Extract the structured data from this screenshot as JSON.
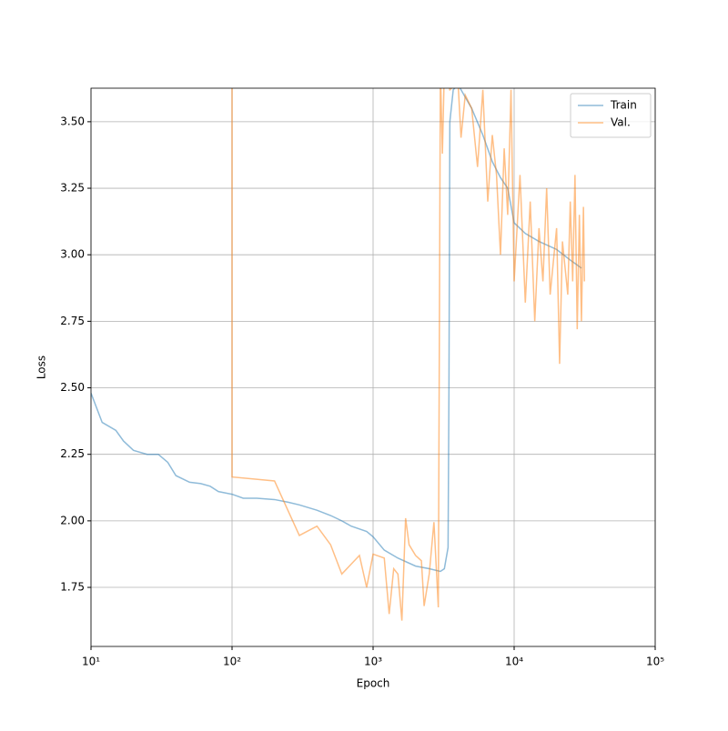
{
  "chart_data": {
    "type": "line",
    "x_label": "Epoch",
    "y_label": "Loss",
    "xscale": "log",
    "grid": true,
    "legend": "upper right",
    "xlim": [
      10,
      100000
    ],
    "xticks": [
      {
        "value": 10,
        "label": "10¹"
      },
      {
        "value": 100,
        "label": "10²"
      },
      {
        "value": 1000,
        "label": "10³"
      },
      {
        "value": 10000,
        "label": "10⁴"
      },
      {
        "value": 100000,
        "label": "10⁵"
      }
    ],
    "ylim": [
      1.528,
      3.626
    ],
    "yticks": [
      1.75,
      {
        "value": 2.0,
        "label": "2.00"
      },
      2.25,
      {
        "value": 2.5,
        "label": "2.50"
      },
      2.75,
      {
        "value": 3.0,
        "label": "3.00"
      },
      3.25,
      {
        "value": 3.5,
        "label": "3.50"
      }
    ],
    "series": [
      {
        "name": "Train",
        "color": "#1f77b4",
        "x": [
          10,
          12,
          15,
          17,
          20,
          25,
          30,
          35,
          40,
          50,
          60,
          70,
          80,
          100,
          120,
          150,
          200,
          250,
          300,
          400,
          500,
          600,
          700,
          900,
          1000,
          1200,
          1500,
          2000,
          2500,
          3000,
          3200,
          3400,
          3450,
          3500,
          3700,
          4000,
          5000,
          6000,
          7000,
          8000,
          9000,
          10000,
          12000,
          15000,
          20000,
          25000,
          30000
        ],
        "values": [
          2.48,
          2.37,
          2.34,
          2.3,
          2.265,
          2.25,
          2.25,
          2.22,
          2.17,
          2.145,
          2.14,
          2.13,
          2.11,
          2.1,
          2.085,
          2.085,
          2.08,
          2.07,
          2.06,
          2.04,
          2.02,
          2.0,
          1.98,
          1.96,
          1.94,
          1.89,
          1.86,
          1.83,
          1.82,
          1.81,
          1.82,
          1.9,
          2.5,
          3.5,
          3.62,
          3.64,
          3.55,
          3.45,
          3.35,
          3.29,
          3.25,
          3.12,
          3.08,
          3.05,
          3.02,
          2.98,
          2.95
        ]
      },
      {
        "name": "Val.",
        "color": "#ff7f0e",
        "x": [
          100,
          100,
          200,
          300,
          400,
          500,
          600,
          800,
          900,
          1000,
          1200,
          1300,
          1400,
          1500,
          1600,
          1700,
          1800,
          2000,
          2200,
          2300,
          2500,
          2700,
          2900,
          3000,
          3100,
          3200,
          3500,
          4000,
          4200,
          4500,
          5000,
          5500,
          6000,
          6500,
          7000,
          7500,
          8000,
          8500,
          9000,
          9500,
          10000,
          11000,
          12000,
          13000,
          14000,
          15000,
          16000,
          17000,
          18000,
          20000,
          21000,
          22000,
          24000,
          25000,
          26000,
          27000,
          28000,
          29000,
          30000,
          31000,
          31500
        ],
        "values": [
          3.7,
          2.165,
          2.15,
          1.945,
          1.98,
          1.91,
          1.8,
          1.87,
          1.75,
          1.875,
          1.86,
          1.65,
          1.82,
          1.8,
          1.625,
          2.01,
          1.91,
          1.87,
          1.85,
          1.68,
          1.8,
          1.995,
          1.675,
          3.7,
          3.38,
          3.7,
          3.62,
          3.65,
          3.44,
          3.6,
          3.55,
          3.33,
          3.62,
          3.2,
          3.45,
          3.3,
          3.0,
          3.4,
          3.15,
          3.62,
          2.9,
          3.3,
          2.82,
          3.2,
          2.75,
          3.1,
          2.9,
          3.25,
          2.85,
          3.1,
          2.59,
          3.05,
          2.85,
          3.2,
          2.9,
          3.3,
          2.72,
          3.15,
          2.75,
          3.18,
          2.9
        ]
      }
    ]
  }
}
